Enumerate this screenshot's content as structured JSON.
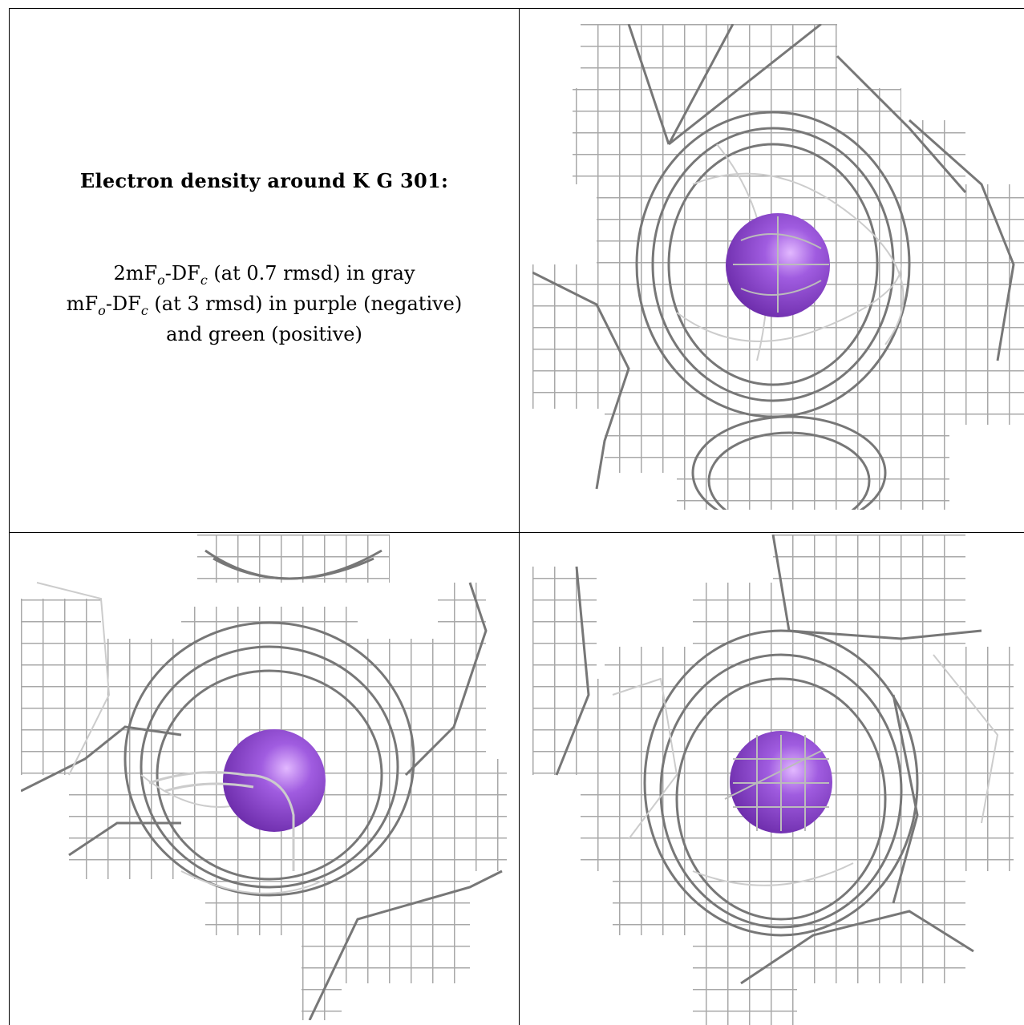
{
  "caption": {
    "title": "Electron density around K G 301:",
    "line1_a": "2mF",
    "line1_sub_o": "o",
    "line1_b": "-DF",
    "line1_sub_c": "c",
    "line1_rest": " (at 0.7 rmsd) in gray",
    "line2_a": "mF",
    "line2_sub_o": "o",
    "line2_b": "-DF",
    "line2_sub_c": "c",
    "line2_rest": " (at 3 rmsd) in purple (negative)",
    "line3": "and green (positive)"
  },
  "colors": {
    "mesh": "#9a9a9a",
    "mesh_dark": "#555555",
    "atom": "#8a3fd0",
    "atom_highlight": "#d9a8ff"
  }
}
